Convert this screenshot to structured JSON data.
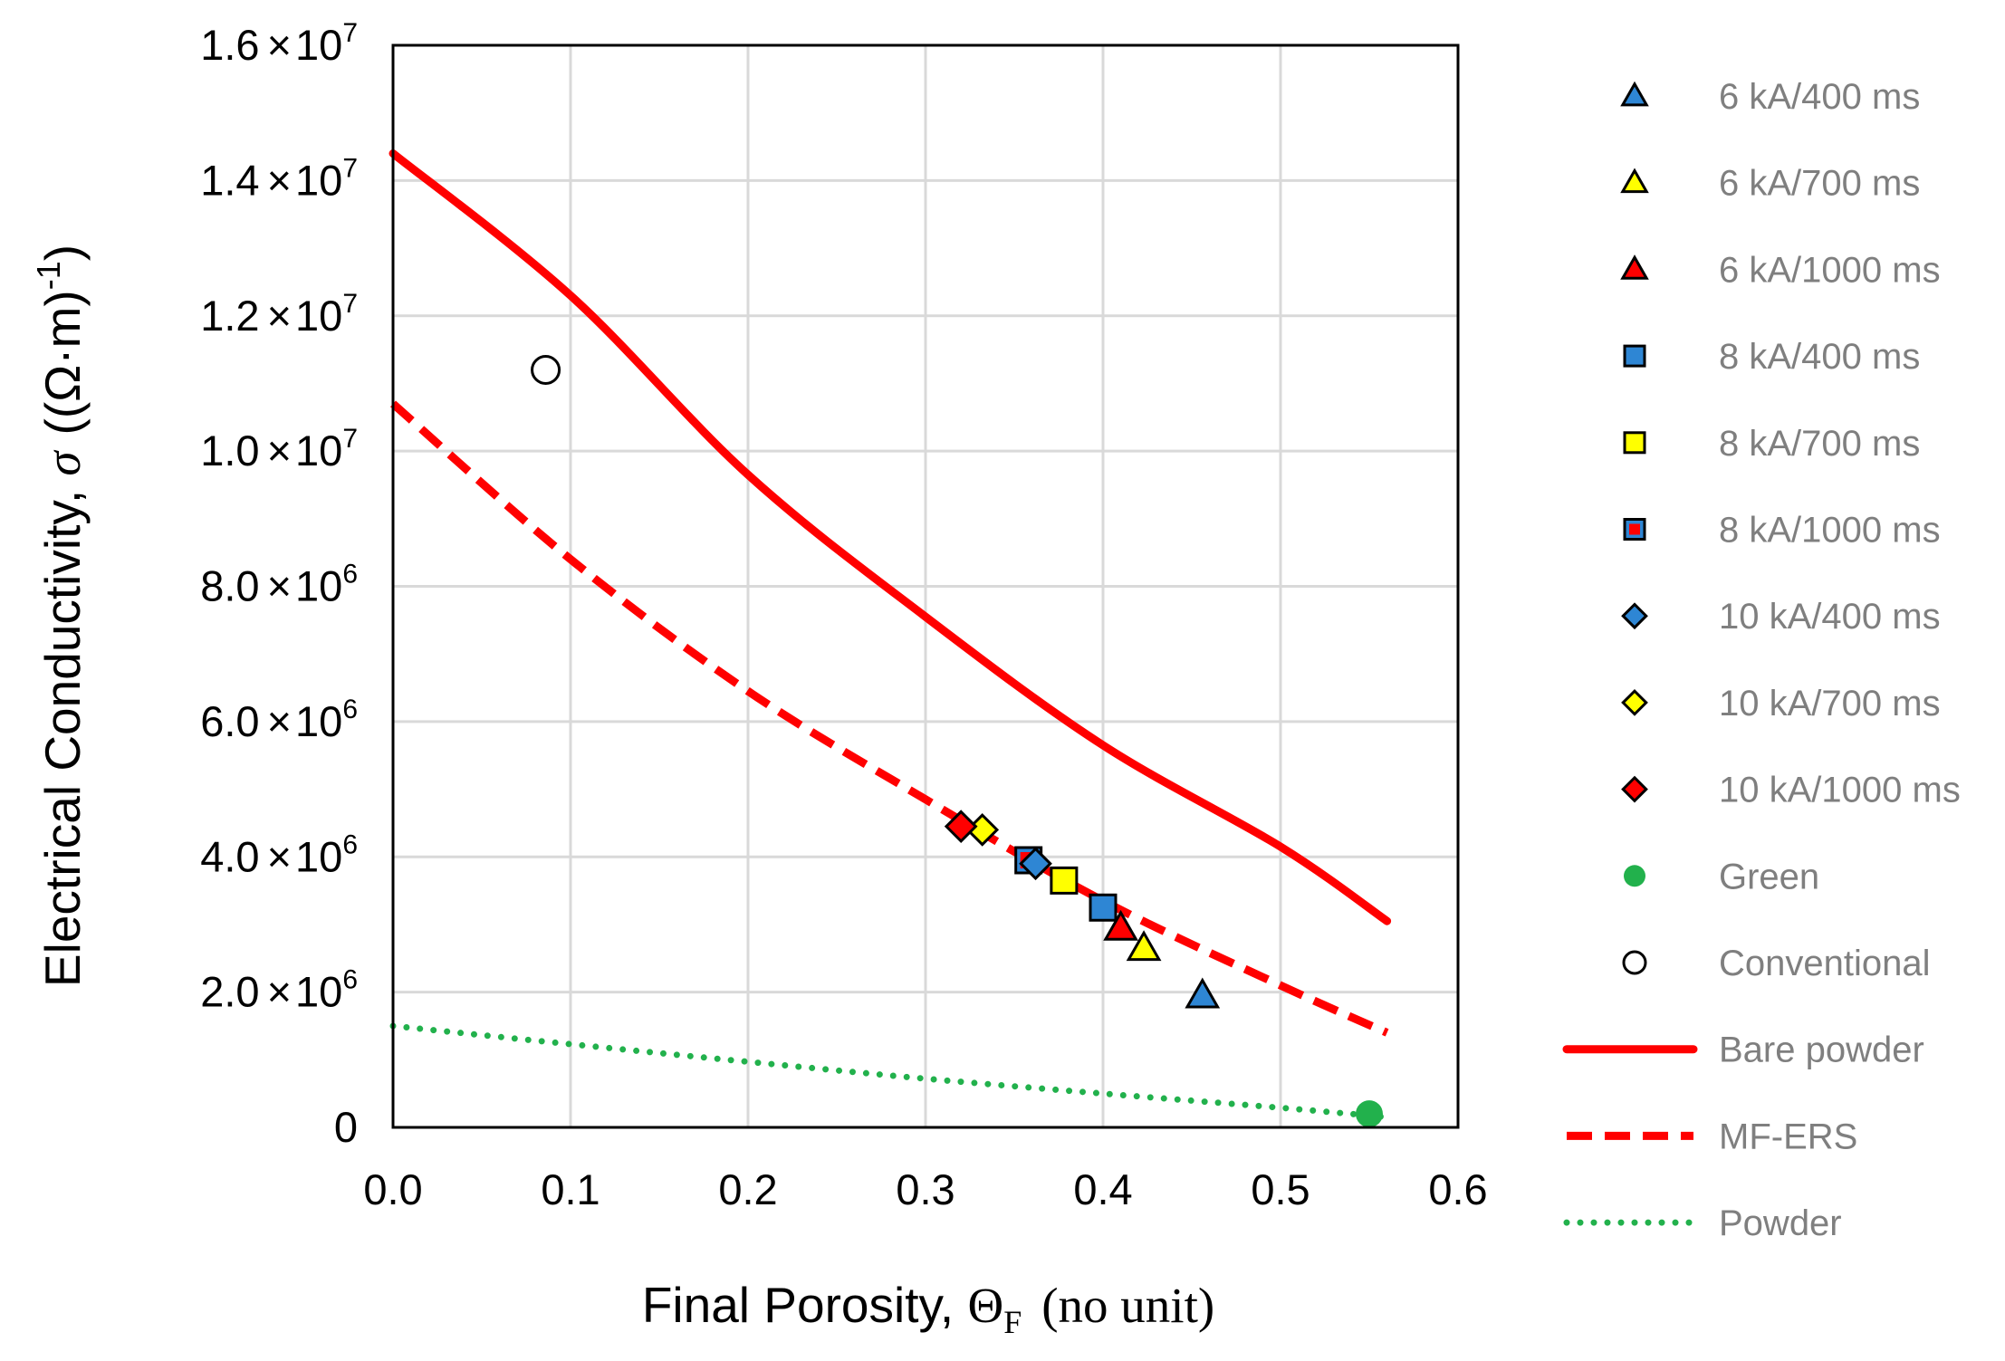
{
  "chart_data": {
    "type": "scatter",
    "title": "",
    "xlabel": {
      "prefix": "Final Porosity, ",
      "symbol": "Θ",
      "subscript": "F",
      "suffix": "(no unit)"
    },
    "ylabel": {
      "prefix": "Electrical Conductivity, ",
      "symbol": "σ",
      "unit_open": "((Ω·m)",
      "unit_sup": "-1",
      "unit_close": ")"
    },
    "xlim": [
      0,
      0.6
    ],
    "ylim": [
      0,
      16000000
    ],
    "grid": true,
    "legend_position": "right",
    "x_ticks": [
      {
        "value": 0.0,
        "label": "0.0"
      },
      {
        "value": 0.1,
        "label": "0.1"
      },
      {
        "value": 0.2,
        "label": "0.2"
      },
      {
        "value": 0.3,
        "label": "0.3"
      },
      {
        "value": 0.4,
        "label": "0.4"
      },
      {
        "value": 0.5,
        "label": "0.5"
      },
      {
        "value": 0.6,
        "label": "0.6"
      }
    ],
    "y_ticks": [
      {
        "value": 0,
        "mant": "0",
        "times": "",
        "base": "",
        "exp": ""
      },
      {
        "value": 2000000,
        "mant": "2.0",
        "times": "×",
        "base": "10",
        "exp": "6"
      },
      {
        "value": 4000000,
        "mant": "4.0",
        "times": "×",
        "base": "10",
        "exp": "6"
      },
      {
        "value": 6000000,
        "mant": "6.0",
        "times": "×",
        "base": "10",
        "exp": "6"
      },
      {
        "value": 8000000,
        "mant": "8.0",
        "times": "×",
        "base": "10",
        "exp": "6"
      },
      {
        "value": 10000000,
        "mant": "1.0",
        "times": "×",
        "base": "10",
        "exp": "7"
      },
      {
        "value": 12000000,
        "mant": "1.2",
        "times": "×",
        "base": "10",
        "exp": "7"
      },
      {
        "value": 14000000,
        "mant": "1.4",
        "times": "×",
        "base": "10",
        "exp": "7"
      },
      {
        "value": 16000000,
        "mant": "1.6",
        "times": "×",
        "base": "10",
        "exp": "7"
      }
    ],
    "series": [
      {
        "name": "6 kA/400 ms",
        "kind": "marker",
        "marker": "triangle",
        "color": "#2e86d4",
        "points": [
          [
            0.456,
            1950000
          ]
        ]
      },
      {
        "name": "6 kA/700 ms",
        "kind": "marker",
        "marker": "triangle",
        "color": "#ffff00",
        "points": [
          [
            0.423,
            2650000
          ]
        ]
      },
      {
        "name": "6 kA/1000 ms",
        "kind": "marker",
        "marker": "triangle",
        "color": "#ff0000",
        "points": [
          [
            0.41,
            2950000
          ]
        ]
      },
      {
        "name": "8 kA/400 ms",
        "kind": "marker",
        "marker": "square",
        "color": "#2e86d4",
        "points": [
          [
            0.4,
            3250000
          ]
        ]
      },
      {
        "name": "8 kA/700 ms",
        "kind": "marker",
        "marker": "square",
        "color": "#ffff00",
        "points": [
          [
            0.378,
            3650000
          ]
        ]
      },
      {
        "name": "8 kA/1000 ms",
        "kind": "marker",
        "marker": "square",
        "color": "#2e86d4",
        "inner": "#ff0000",
        "points": [
          [
            0.358,
            3950000
          ]
        ]
      },
      {
        "name": "10 kA/400 ms",
        "kind": "marker",
        "marker": "diamond",
        "color": "#2e86d4",
        "points": [
          [
            0.362,
            3900000
          ]
        ]
      },
      {
        "name": "10 kA/700 ms",
        "kind": "marker",
        "marker": "diamond",
        "color": "#ffff00",
        "points": [
          [
            0.332,
            4400000
          ]
        ]
      },
      {
        "name": "10 kA/1000 ms",
        "kind": "marker",
        "marker": "diamond",
        "color": "#ff0000",
        "points": [
          [
            0.32,
            4450000
          ]
        ]
      },
      {
        "name": "Green",
        "kind": "marker",
        "marker": "circle",
        "color": "#22b14c",
        "points": [
          [
            0.55,
            200000
          ]
        ]
      },
      {
        "name": "Conventional",
        "kind": "marker",
        "marker": "ring",
        "color": "#ffffff",
        "points": [
          [
            0.086,
            11200000
          ]
        ]
      },
      {
        "name": "Bare powder",
        "kind": "line",
        "style": "solid",
        "color": "#ff0000",
        "points": [
          [
            0,
            14400000
          ],
          [
            0.1,
            12300000
          ],
          [
            0.2,
            9650000
          ],
          [
            0.3,
            7550000
          ],
          [
            0.4,
            5650000
          ],
          [
            0.5,
            4150000
          ],
          [
            0.56,
            3050000
          ]
        ]
      },
      {
        "name": "MF-ERS",
        "kind": "line",
        "style": "dashed",
        "color": "#ff0000",
        "points": [
          [
            0,
            10700000
          ],
          [
            0.1,
            8400000
          ],
          [
            0.2,
            6450000
          ],
          [
            0.3,
            4850000
          ],
          [
            0.4,
            3350000
          ],
          [
            0.5,
            2100000
          ],
          [
            0.56,
            1400000
          ]
        ]
      },
      {
        "name": "Powder",
        "kind": "line",
        "style": "dotted",
        "color": "#22b14c",
        "points": [
          [
            0,
            1500000
          ],
          [
            0.1,
            1230000
          ],
          [
            0.2,
            970000
          ],
          [
            0.3,
            720000
          ],
          [
            0.4,
            500000
          ],
          [
            0.5,
            290000
          ],
          [
            0.56,
            150000
          ]
        ]
      }
    ]
  }
}
